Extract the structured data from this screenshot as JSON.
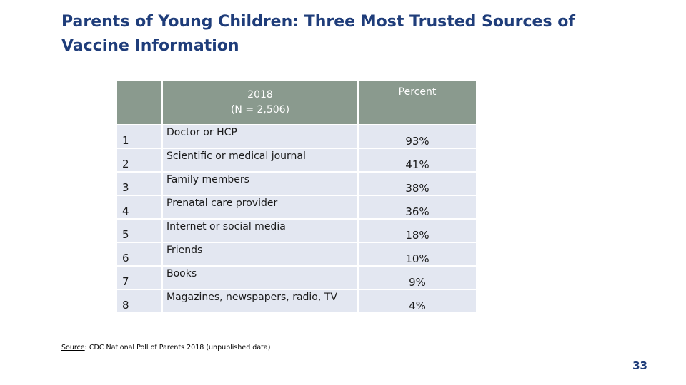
{
  "slide": {
    "title": "Parents of Young Children: Three Most Trusted Sources of Vaccine Information",
    "page_number": "33"
  },
  "table": {
    "header": {
      "rank": "",
      "year_line1": "2018",
      "year_line2": "(N = 2,506)",
      "percent": "Percent"
    },
    "rows": [
      {
        "rank": "1",
        "source": "Doctor or HCP",
        "percent": "93%"
      },
      {
        "rank": "2",
        "source": "Scientific or medical journal",
        "percent": "41%"
      },
      {
        "rank": "3",
        "source": "Family members",
        "percent": "38%"
      },
      {
        "rank": "4",
        "source": "Prenatal care provider",
        "percent": "36%"
      },
      {
        "rank": "5",
        "source": "Internet or social media",
        "percent": "18%"
      },
      {
        "rank": "6",
        "source": "Friends",
        "percent": "10%"
      },
      {
        "rank": "7",
        "source": "Books",
        "percent": "9%"
      },
      {
        "rank": "8",
        "source": "Magazines, newspapers, radio, TV",
        "percent": "4%"
      }
    ]
  },
  "footnote": {
    "label": "Source",
    "text": ": CDC National Poll of Parents 2018 (unpublished data)"
  },
  "colors": {
    "title": "#1f3d7a",
    "header_bg": "#8a9a8e",
    "row_bg": "#e3e7f1"
  }
}
